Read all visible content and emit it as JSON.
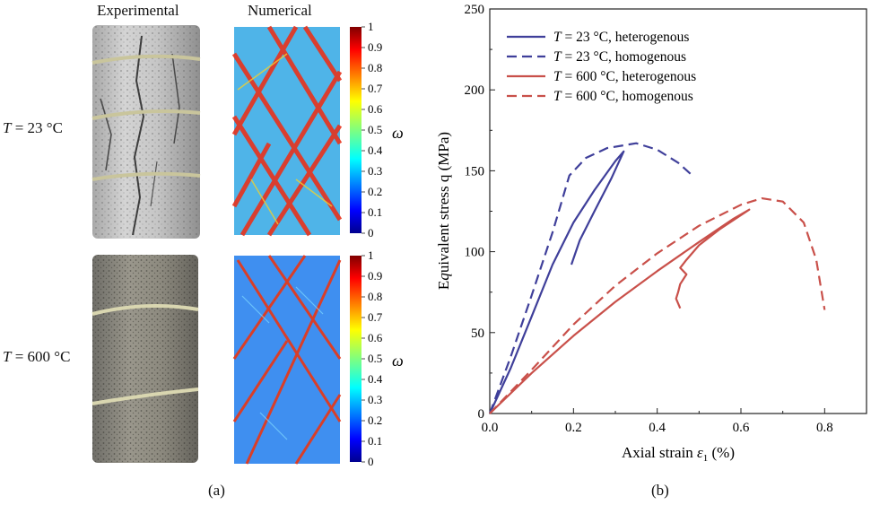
{
  "panel_a": {
    "header_experimental": "Experimental",
    "header_numerical": "Numerical",
    "rows": [
      {
        "var": "T",
        "value": "= 23 °C"
      },
      {
        "var": "T",
        "value": "= 600 °C"
      }
    ],
    "colorbar": {
      "ticks": [
        "1",
        "0.9",
        "0.8",
        "0.7",
        "0.6",
        "0.5",
        "0.4",
        "0.3",
        "0.2",
        "0.1",
        "0"
      ],
      "label": "ω"
    },
    "caption": "(a)"
  },
  "panel_b": {
    "caption": "(b)"
  },
  "chart_data": {
    "type": "line",
    "xlabel": "Axial strain ε1 (%)",
    "ylabel": "Equivalent stress q (MPa)",
    "xlim": [
      0,
      0.9
    ],
    "ylim": [
      0,
      250
    ],
    "x_ticks": [
      "0.0",
      "0.2",
      "0.4",
      "0.6",
      "0.8"
    ],
    "y_ticks": [
      "0",
      "50",
      "100",
      "150",
      "200",
      "250"
    ],
    "legend_position": "top-left",
    "series": [
      {
        "name": "T = 23 °C, heterogenous",
        "color": "#3f3f9a",
        "dash": "solid",
        "points": [
          [
            0,
            0
          ],
          [
            0.05,
            28
          ],
          [
            0.1,
            60
          ],
          [
            0.15,
            92
          ],
          [
            0.2,
            118
          ],
          [
            0.25,
            138
          ],
          [
            0.3,
            156
          ],
          [
            0.32,
            162
          ],
          [
            0.29,
            145
          ],
          [
            0.25,
            125
          ],
          [
            0.215,
            107
          ],
          [
            0.195,
            92
          ]
        ]
      },
      {
        "name": "T = 23 °C, homogenous",
        "color": "#3f3f9a",
        "dash": "dashed",
        "points": [
          [
            0,
            0
          ],
          [
            0.05,
            35
          ],
          [
            0.1,
            73
          ],
          [
            0.15,
            112
          ],
          [
            0.19,
            147
          ],
          [
            0.23,
            158
          ],
          [
            0.28,
            164
          ],
          [
            0.35,
            167
          ],
          [
            0.4,
            163
          ],
          [
            0.45,
            155
          ],
          [
            0.48,
            148
          ]
        ]
      },
      {
        "name": "T = 600 °C, heterogenous",
        "color": "#c9504a",
        "dash": "solid",
        "points": [
          [
            0,
            0
          ],
          [
            0.1,
            25
          ],
          [
            0.2,
            48
          ],
          [
            0.3,
            69
          ],
          [
            0.4,
            88
          ],
          [
            0.5,
            106
          ],
          [
            0.58,
            120
          ],
          [
            0.62,
            126
          ],
          [
            0.55,
            114
          ],
          [
            0.5,
            104
          ],
          [
            0.47,
            95
          ],
          [
            0.455,
            90
          ],
          [
            0.47,
            86
          ],
          [
            0.455,
            80
          ],
          [
            0.45,
            75
          ],
          [
            0.445,
            71
          ],
          [
            0.455,
            65
          ]
        ]
      },
      {
        "name": "T = 600 °C, homogenous",
        "color": "#c9504a",
        "dash": "dashed",
        "points": [
          [
            0,
            0
          ],
          [
            0.1,
            27
          ],
          [
            0.2,
            55
          ],
          [
            0.3,
            79
          ],
          [
            0.4,
            99
          ],
          [
            0.5,
            116
          ],
          [
            0.6,
            129
          ],
          [
            0.65,
            133
          ],
          [
            0.7,
            131
          ],
          [
            0.75,
            118
          ],
          [
            0.78,
            95
          ],
          [
            0.8,
            64
          ]
        ]
      }
    ]
  }
}
